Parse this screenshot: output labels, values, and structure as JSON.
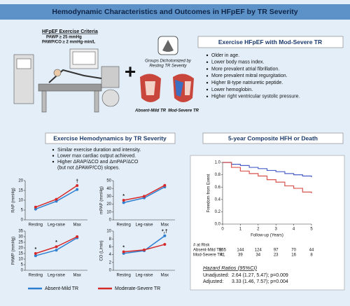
{
  "title": "Hemodynamic Characteristics and Outcomes in HFpEF by TR Severity",
  "criteria": {
    "title": "HFpEF Exercise Criteria",
    "lines": [
      "PAWP ≥ 25 mmHg",
      "PAWP/CO ≥ 2 mmHg·min/L"
    ]
  },
  "plus": "+",
  "groups": {
    "caption": [
      "Groups Dichotomized by",
      "Resting TR Severity"
    ],
    "labels": [
      "Absent-Mild TR",
      "Mod-Severe TR"
    ]
  },
  "findings": {
    "title": "Exercise HFpEF with Mod-Severe TR",
    "bullets": [
      "Older in age.",
      "Lower body mass index.",
      "More prevalent atrial fibrillation.",
      "More prevalent mitral regurgitation.",
      "Higher B-type natriuretic peptide.",
      "Lower hemoglobin.",
      "Higher right ventricular systolic pressure."
    ]
  },
  "exercise": {
    "title": "Exercise Hemodynamics by TR Severity",
    "bullets": [
      [
        "Similar exercise duration and intensity."
      ],
      [
        "Lower max cardiac output achieved."
      ],
      [
        "Higher ΔRAP/ΔCO and ΔmPAP/ΔCO",
        "(but not ΔPAWP/CO) slopes."
      ]
    ]
  },
  "hazard": {
    "title": "Hazard Ratios (95%CI)",
    "rows": [
      [
        "Unadjusted:",
        "2.64 (1.27, 5.47); p=0.009"
      ],
      [
        "Adjusted:",
        "3.33 (1.46, 7.57); p=0.004"
      ]
    ]
  },
  "chart_data": [
    {
      "type": "line",
      "y_label": "RAP (mmHg)",
      "categories": [
        "Resting",
        "Leg-raise",
        "Max"
      ],
      "ylim": [
        0,
        20
      ],
      "yticks": [
        0,
        5,
        10,
        15,
        20
      ],
      "series": [
        {
          "name": "Absent-Mild TR",
          "color": "#2e7fd0",
          "values": [
            5.5,
            9.5,
            15.5
          ]
        },
        {
          "name": "Moderate-Severe TR",
          "color": "#d62a2a",
          "values": [
            6.5,
            10.5,
            17.5
          ]
        }
      ],
      "annotations": [
        {
          "text": "†",
          "at": "Max"
        }
      ]
    },
    {
      "type": "line",
      "y_label": "mPAP (mmHg)",
      "categories": [
        "Resting",
        "Leg-raise",
        "Max"
      ],
      "ylim": [
        0,
        50
      ],
      "yticks": [
        0,
        10,
        20,
        30,
        40,
        50
      ],
      "series": [
        {
          "name": "Absent-Mild TR",
          "color": "#2e7fd0",
          "values": [
            22,
            28,
            42
          ]
        },
        {
          "name": "Moderate-Severe TR",
          "color": "#d62a2a",
          "values": [
            25,
            30,
            44
          ]
        }
      ],
      "annotations": [
        {
          "text": "*",
          "at": "Resting"
        }
      ]
    },
    {
      "type": "line",
      "y_label": "PAWP (mmHg)",
      "categories": [
        "Resting",
        "Leg-raise",
        "Max"
      ],
      "ylim": [
        0,
        35
      ],
      "yticks": [
        0,
        5,
        10,
        15,
        20,
        25,
        30,
        35
      ],
      "series": [
        {
          "name": "Absent-Mild TR",
          "color": "#2e7fd0",
          "values": [
            13,
            18,
            29
          ]
        },
        {
          "name": "Moderate-Severe TR",
          "color": "#d62a2a",
          "values": [
            15,
            21,
            30
          ]
        }
      ],
      "annotations": [
        {
          "text": "*",
          "at": "Resting"
        },
        {
          "text": "*",
          "at": "Leg-raise"
        }
      ]
    },
    {
      "type": "line",
      "y_label": "CO (L/min)",
      "categories": [
        "Resting",
        "Leg-raise",
        "Max"
      ],
      "ylim": [
        0,
        10
      ],
      "yticks": [
        0,
        2,
        4,
        6,
        8,
        10
      ],
      "series": [
        {
          "name": "Absent-Mild TR",
          "color": "#2e7fd0",
          "values": [
            4.3,
            5,
            8.8
          ]
        },
        {
          "name": "Moderate-Severe TR",
          "color": "#d62a2a",
          "values": [
            4.7,
            5.2,
            6.6
          ]
        }
      ],
      "annotations": [
        {
          "text": "*",
          "at": "Resting"
        },
        {
          "text": "*,†",
          "at": "Max"
        }
      ]
    },
    {
      "type": "step",
      "title": "5-year Composite HFH or Death",
      "y_label": "Freedom from Event",
      "x_label": "Follow-up (Years)",
      "x": [
        0,
        0.5,
        1,
        1.5,
        2,
        2.5,
        3,
        3.5,
        4,
        4.5,
        5
      ],
      "xlim": [
        0,
        5
      ],
      "xticks": [
        0,
        1,
        2,
        3,
        4,
        5
      ],
      "ylim": [
        0,
        1
      ],
      "yticks": [
        {
          "value": 0,
          "label": "0.0"
        },
        0.2,
        0.4,
        0.6,
        0.8,
        {
          "value": 1,
          "label": "1.0"
        }
      ],
      "at_risk_label": "# at Risk",
      "series": [
        {
          "name": "Absent-Mild TR",
          "color": "#4a5fc8",
          "values": [
            1,
            0.97,
            0.95,
            0.92,
            0.9,
            0.87,
            0.85,
            0.82,
            0.8,
            0.78,
            0.76
          ],
          "at_risk": [
            165,
            144,
            124,
            97,
            70,
            44
          ]
        },
        {
          "name": "Mod-Severe TR",
          "color": "#d9534f",
          "values": [
            1,
            0.92,
            0.86,
            0.82,
            0.78,
            0.72,
            0.68,
            0.62,
            0.58,
            0.52,
            0.5
          ],
          "at_risk": [
            41,
            39,
            34,
            23,
            16,
            8
          ]
        }
      ]
    }
  ]
}
